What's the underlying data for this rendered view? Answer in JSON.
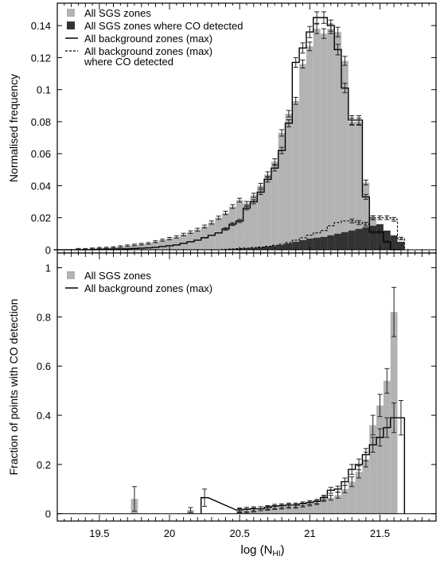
{
  "colors": {
    "sgs_fill": "#b3b3b3",
    "sgs_co_fill": "#333333",
    "line": "#000000",
    "errorbar": "#222222"
  },
  "shared_x": {
    "label_main": "log (N",
    "label_sub": "HI",
    "label_tail": ")",
    "range": [
      19.2,
      21.9
    ],
    "ticks": [
      "19.5",
      "20",
      "20.5",
      "21",
      "21.5"
    ],
    "tick_values": [
      19.5,
      20.0,
      20.5,
      21.0,
      21.5
    ]
  },
  "chart_data": [
    {
      "type": "bar",
      "ylabel": "Normalised frequency",
      "ylim": [
        -0.002,
        0.154
      ],
      "yticks": [
        "0",
        "0.02",
        "0.04",
        "0.06",
        "0.08",
        "0.1",
        "0.12",
        "0.14"
      ],
      "ytick_values": [
        0,
        0.02,
        0.04,
        0.06,
        0.08,
        0.1,
        0.12,
        0.14
      ],
      "bin_centers": [
        19.2,
        19.25,
        19.3,
        19.35,
        19.4,
        19.45,
        19.5,
        19.55,
        19.6,
        19.65,
        19.7,
        19.75,
        19.8,
        19.85,
        19.9,
        19.95,
        20.0,
        20.05,
        20.1,
        20.15,
        20.2,
        20.25,
        20.3,
        20.35,
        20.4,
        20.45,
        20.5,
        20.55,
        20.6,
        20.65,
        20.7,
        20.75,
        20.8,
        20.85,
        20.9,
        20.95,
        21.0,
        21.05,
        21.1,
        21.15,
        21.2,
        21.25,
        21.3,
        21.35,
        21.4,
        21.45,
        21.5,
        21.55,
        21.6,
        21.65
      ],
      "legend": [
        {
          "label": "All SGS zones",
          "kind": "light"
        },
        {
          "label": "All SGS zones where CO detected",
          "kind": "dark"
        },
        {
          "label": "All background zones (max)",
          "kind": "solid"
        },
        {
          "label": "All background zones (max)",
          "kind": "dashed"
        },
        {
          "label": "where CO detected",
          "kind": "none"
        }
      ],
      "series": [
        {
          "name": "All SGS zones",
          "style": "light",
          "values": [
            0,
            0,
            0,
            0.0005,
            0.0005,
            0.0008,
            0.001,
            0.0012,
            0.0015,
            0.002,
            0.0025,
            0.003,
            0.0035,
            0.004,
            0.005,
            0.006,
            0.007,
            0.008,
            0.0095,
            0.011,
            0.0125,
            0.0145,
            0.017,
            0.02,
            0.023,
            0.027,
            0.031,
            0.029,
            0.034,
            0.04,
            0.047,
            0.055,
            0.073,
            0.085,
            0.093,
            0.116,
            0.127,
            0.138,
            0.135,
            0.138,
            0.136,
            0.118,
            0.08,
            0.08,
            0.042,
            0.02,
            0.01,
            0.005,
            0,
            0
          ],
          "errors": [
            0,
            0,
            0,
            0.0003,
            0.0003,
            0.0003,
            0.0004,
            0.0004,
            0.0004,
            0.0005,
            0.0005,
            0.0005,
            0.0005,
            0.0005,
            0.0006,
            0.0006,
            0.0007,
            0.0007,
            0.0008,
            0.0008,
            0.0009,
            0.0009,
            0.001,
            0.001,
            0.0011,
            0.0012,
            0.0012,
            0.0012,
            0.0013,
            0.0015,
            0.0017,
            0.0018,
            0.002,
            0.002,
            0.0022,
            0.0025,
            0.0027,
            0.003,
            0.003,
            0.003,
            0.003,
            0.0028,
            0.0022,
            0.0022,
            0.0015,
            0.0012,
            0.0008,
            0.0006,
            0,
            0
          ]
        },
        {
          "name": "All SGS zones where CO detected",
          "style": "dark",
          "values": [
            0,
            0,
            0,
            0,
            0,
            0,
            0,
            0,
            0,
            0,
            0,
            0,
            0,
            0,
            0,
            0,
            0,
            0,
            0,
            0,
            0,
            0,
            0,
            0,
            0.0003,
            0.0005,
            0.0007,
            0.0009,
            0.0012,
            0.0016,
            0.002,
            0.0025,
            0.003,
            0.004,
            0.005,
            0.006,
            0.007,
            0.0075,
            0.008,
            0.009,
            0.01,
            0.011,
            0.012,
            0.013,
            0.014,
            0.015,
            0.016,
            0.012,
            0.009,
            0.005
          ],
          "errors": [
            0,
            0,
            0,
            0,
            0,
            0,
            0,
            0,
            0,
            0,
            0,
            0,
            0,
            0,
            0,
            0,
            0,
            0,
            0,
            0,
            0,
            0,
            0,
            0,
            0,
            0,
            0,
            0,
            0,
            0,
            0,
            0,
            0,
            0,
            0,
            0,
            0,
            0,
            0,
            0,
            0,
            0,
            0,
            0,
            0,
            0,
            0,
            0,
            0,
            0
          ]
        },
        {
          "name": "All background zones (max)",
          "style": "solid",
          "values": [
            0,
            0,
            0,
            0,
            0,
            0,
            0.0002,
            0.0003,
            0.0004,
            0.0005,
            0.0006,
            0.0008,
            0.001,
            0.0012,
            0.0015,
            0.002,
            0.0025,
            0.003,
            0.004,
            0.005,
            0.006,
            0.0075,
            0.009,
            0.0105,
            0.013,
            0.016,
            0.018,
            0.026,
            0.03,
            0.036,
            0.044,
            0.051,
            0.062,
            0.079,
            0.117,
            0.126,
            0.136,
            0.145,
            0.145,
            0.14,
            0.125,
            0.101,
            0.081,
            0.081,
            0.033,
            0.011,
            0.011,
            0.005,
            0,
            0
          ],
          "errors": [
            0,
            0,
            0,
            0,
            0,
            0,
            0,
            0,
            0,
            0,
            0,
            0,
            0,
            0,
            0,
            0,
            0,
            0,
            0,
            0,
            0,
            0,
            0,
            0,
            0.0008,
            0.0009,
            0.001,
            0.0011,
            0.0013,
            0.0015,
            0.0017,
            0.0018,
            0.002,
            0.0022,
            0.003,
            0.0032,
            0.0035,
            0.0036,
            0.0036,
            0.0035,
            0.0033,
            0.003,
            0.0027,
            0.0027,
            0.0015,
            0.0008,
            0.0008,
            0.0006,
            0,
            0
          ]
        },
        {
          "name": "All background zones (max) where CO detected",
          "style": "dashed",
          "values": [
            0,
            0,
            0,
            0,
            0,
            0,
            0,
            0,
            0,
            0,
            0,
            0,
            0,
            0,
            0,
            0,
            0,
            0,
            0,
            0,
            0,
            0,
            0,
            0,
            0.0003,
            0.0005,
            0.0007,
            0.001,
            0.0013,
            0.0017,
            0.0022,
            0.0028,
            0.0035,
            0.0045,
            0.006,
            0.0075,
            0.009,
            0.0105,
            0.012,
            0.015,
            0.017,
            0.018,
            0.018,
            0.017,
            0.016,
            0.02,
            0.02,
            0.02,
            0.019,
            0.007
          ],
          "errors": [
            0,
            0,
            0,
            0,
            0,
            0,
            0,
            0,
            0,
            0,
            0,
            0,
            0,
            0,
            0,
            0,
            0,
            0,
            0,
            0,
            0,
            0,
            0,
            0,
            0,
            0,
            0,
            0,
            0,
            0,
            0,
            0,
            0,
            0,
            0,
            0,
            0,
            0,
            0,
            0,
            0,
            0,
            0.0012,
            0.0012,
            0.0012,
            0.0012,
            0.0012,
            0.0012,
            0.0012,
            0.0008
          ]
        }
      ]
    },
    {
      "type": "bar",
      "ylabel": "Fraction of points with CO detection",
      "ylim": [
        -0.03,
        1.06
      ],
      "yticks": [
        "0",
        "0.2",
        "0.4",
        "0.6",
        "0.8",
        "1"
      ],
      "ytick_values": [
        0,
        0.2,
        0.4,
        0.6,
        0.8,
        1.0
      ],
      "legend": [
        {
          "label": "All SGS zones",
          "kind": "light"
        },
        {
          "label": "All background zones (max)",
          "kind": "solid"
        }
      ],
      "bar_width": 0.05,
      "series": [
        {
          "name": "All SGS zones",
          "style": "light",
          "x": [
            19.75,
            20.15,
            20.5,
            20.55,
            20.6,
            20.65,
            20.7,
            20.75,
            20.8,
            20.85,
            20.9,
            20.95,
            21.0,
            21.05,
            21.1,
            21.15,
            21.2,
            21.25,
            21.3,
            21.35,
            21.4,
            21.45,
            21.5,
            21.55,
            21.6,
            21.65
          ],
          "values": [
            0.06,
            0.015,
            0.012,
            0.012,
            0.015,
            0.02,
            0.022,
            0.025,
            0.027,
            0.03,
            0.03,
            0.035,
            0.04,
            0.045,
            0.06,
            0.065,
            0.075,
            0.1,
            0.13,
            0.17,
            0.22,
            0.36,
            0.44,
            0.54,
            0.82,
            0.0
          ],
          "errors": [
            0.05,
            0.01,
            0.008,
            0.008,
            0.008,
            0.008,
            0.008,
            0.008,
            0.008,
            0.008,
            0.008,
            0.008,
            0.008,
            0.008,
            0.01,
            0.01,
            0.012,
            0.015,
            0.02,
            0.025,
            0.03,
            0.04,
            0.045,
            0.05,
            0.1,
            0
          ]
        },
        {
          "name": "All background zones (max)",
          "style": "solid",
          "x": [
            20.25,
            20.5,
            20.55,
            20.6,
            20.65,
            20.7,
            20.75,
            20.8,
            20.85,
            20.9,
            20.95,
            21.0,
            21.05,
            21.1,
            21.15,
            21.2,
            21.25,
            21.3,
            21.35,
            21.4,
            21.45,
            21.5,
            21.55,
            21.6,
            21.65
          ],
          "values": [
            0.065,
            0.015,
            0.018,
            0.02,
            0.02,
            0.025,
            0.03,
            0.032,
            0.035,
            0.035,
            0.04,
            0.045,
            0.05,
            0.065,
            0.095,
            0.1,
            0.13,
            0.18,
            0.2,
            0.24,
            0.28,
            0.31,
            0.35,
            0.39,
            0.39
          ],
          "errors": [
            0.035,
            0.008,
            0.008,
            0.008,
            0.008,
            0.008,
            0.008,
            0.008,
            0.008,
            0.008,
            0.008,
            0.008,
            0.008,
            0.01,
            0.012,
            0.012,
            0.015,
            0.02,
            0.022,
            0.025,
            0.03,
            0.035,
            0.04,
            0.06,
            0.07
          ]
        }
      ]
    }
  ]
}
